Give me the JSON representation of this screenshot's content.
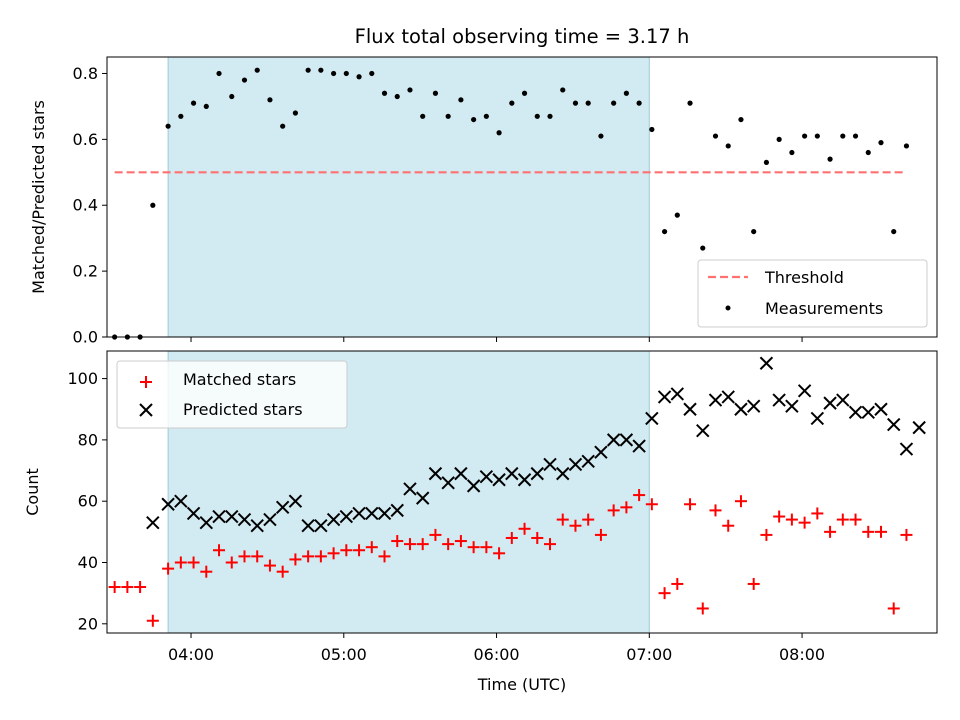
{
  "chart_data": [
    {
      "type": "scatter",
      "title": "Flux total observing time = 3.17 h",
      "xlabel": "",
      "ylabel": "Matched/Predicted stars",
      "x_axis_type": "time",
      "xlim": [
        "03:27",
        "08:53"
      ],
      "ylim": [
        0,
        0.85
      ],
      "yticks": [
        0.0,
        0.2,
        0.4,
        0.6,
        0.8
      ],
      "ytick_labels": [
        "0.0",
        "0.2",
        "0.4",
        "0.6",
        "0.8"
      ],
      "xticks": [
        "04:00",
        "05:00",
        "06:00",
        "07:00",
        "08:00"
      ],
      "xtick_labels_visible": false,
      "shaded_interval": {
        "start": "03:51",
        "end": "07:00",
        "color": "#add8e6"
      },
      "grid": false,
      "legend_position": "lower right",
      "threshold": {
        "name": "Threshold",
        "value": 0.5,
        "x_range": [
          "03:30",
          "08:40"
        ],
        "color": "#ff7070",
        "style": "dashed"
      },
      "series": [
        {
          "name": "Measurements",
          "color": "#000000",
          "marker": "dot",
          "points": [
            [
              "03:30",
              0.0
            ],
            [
              "03:35",
              0.0
            ],
            [
              "03:40",
              0.0
            ],
            [
              "03:45",
              0.4
            ],
            [
              "03:51",
              0.64
            ],
            [
              "03:56",
              0.67
            ],
            [
              "04:01",
              0.71
            ],
            [
              "04:06",
              0.7
            ],
            [
              "04:11",
              0.8
            ],
            [
              "04:16",
              0.73
            ],
            [
              "04:21",
              0.78
            ],
            [
              "04:26",
              0.81
            ],
            [
              "04:31",
              0.72
            ],
            [
              "04:36",
              0.64
            ],
            [
              "04:41",
              0.68
            ],
            [
              "04:46",
              0.81
            ],
            [
              "04:51",
              0.81
            ],
            [
              "04:56",
              0.8
            ],
            [
              "05:01",
              0.8
            ],
            [
              "05:06",
              0.79
            ],
            [
              "05:11",
              0.8
            ],
            [
              "05:16",
              0.74
            ],
            [
              "05:21",
              0.73
            ],
            [
              "05:26",
              0.75
            ],
            [
              "05:31",
              0.67
            ],
            [
              "05:36",
              0.74
            ],
            [
              "05:41",
              0.67
            ],
            [
              "05:46",
              0.72
            ],
            [
              "05:51",
              0.66
            ],
            [
              "05:56",
              0.67
            ],
            [
              "06:01",
              0.62
            ],
            [
              "06:06",
              0.71
            ],
            [
              "06:11",
              0.74
            ],
            [
              "06:16",
              0.67
            ],
            [
              "06:21",
              0.67
            ],
            [
              "06:26",
              0.75
            ],
            [
              "06:31",
              0.71
            ],
            [
              "06:36",
              0.71
            ],
            [
              "06:41",
              0.61
            ],
            [
              "06:46",
              0.71
            ],
            [
              "06:51",
              0.74
            ],
            [
              "06:56",
              0.71
            ],
            [
              "07:01",
              0.63
            ],
            [
              "07:06",
              0.32
            ],
            [
              "07:11",
              0.37
            ],
            [
              "07:16",
              0.71
            ],
            [
              "07:21",
              0.27
            ],
            [
              "07:26",
              0.61
            ],
            [
              "07:31",
              0.58
            ],
            [
              "07:36",
              0.66
            ],
            [
              "07:41",
              0.32
            ],
            [
              "07:46",
              0.53
            ],
            [
              "07:51",
              0.6
            ],
            [
              "07:56",
              0.56
            ],
            [
              "08:01",
              0.61
            ],
            [
              "08:06",
              0.61
            ],
            [
              "08:11",
              0.54
            ],
            [
              "08:16",
              0.61
            ],
            [
              "08:21",
              0.61
            ],
            [
              "08:26",
              0.56
            ],
            [
              "08:31",
              0.59
            ],
            [
              "08:36",
              0.32
            ],
            [
              "08:41",
              0.58
            ]
          ]
        }
      ]
    },
    {
      "type": "scatter",
      "title": "",
      "xlabel": "Time (UTC)",
      "ylabel": "Count",
      "x_axis_type": "time",
      "xlim": [
        "03:27",
        "08:53"
      ],
      "ylim": [
        17,
        109
      ],
      "yticks": [
        20,
        40,
        60,
        80,
        100
      ],
      "ytick_labels": [
        "20",
        "40",
        "60",
        "80",
        "100"
      ],
      "xticks": [
        "04:00",
        "05:00",
        "06:00",
        "07:00",
        "08:00"
      ],
      "xtick_labels": [
        "04:00",
        "05:00",
        "06:00",
        "07:00",
        "08:00"
      ],
      "shaded_interval": {
        "start": "03:51",
        "end": "07:00",
        "color": "#add8e6"
      },
      "grid": false,
      "legend_position": "upper left",
      "series": [
        {
          "name": "Matched stars",
          "color": "#ff0000",
          "marker": "plus",
          "points": [
            [
              "03:30",
              32
            ],
            [
              "03:35",
              32
            ],
            [
              "03:40",
              32
            ],
            [
              "03:45",
              21
            ],
            [
              "03:51",
              38
            ],
            [
              "03:56",
              40
            ],
            [
              "04:01",
              40
            ],
            [
              "04:06",
              37
            ],
            [
              "04:11",
              44
            ],
            [
              "04:16",
              40
            ],
            [
              "04:21",
              42
            ],
            [
              "04:26",
              42
            ],
            [
              "04:31",
              39
            ],
            [
              "04:36",
              37
            ],
            [
              "04:41",
              41
            ],
            [
              "04:46",
              42
            ],
            [
              "04:51",
              42
            ],
            [
              "04:56",
              43
            ],
            [
              "05:01",
              44
            ],
            [
              "05:06",
              44
            ],
            [
              "05:11",
              45
            ],
            [
              "05:16",
              42
            ],
            [
              "05:21",
              47
            ],
            [
              "05:26",
              46
            ],
            [
              "05:31",
              46
            ],
            [
              "05:36",
              49
            ],
            [
              "05:41",
              46
            ],
            [
              "05:46",
              47
            ],
            [
              "05:51",
              45
            ],
            [
              "05:56",
              45
            ],
            [
              "06:01",
              43
            ],
            [
              "06:06",
              48
            ],
            [
              "06:11",
              51
            ],
            [
              "06:16",
              48
            ],
            [
              "06:21",
              46
            ],
            [
              "06:26",
              54
            ],
            [
              "06:31",
              52
            ],
            [
              "06:36",
              54
            ],
            [
              "06:41",
              49
            ],
            [
              "06:46",
              57
            ],
            [
              "06:51",
              58
            ],
            [
              "06:56",
              62
            ],
            [
              "07:01",
              59
            ],
            [
              "07:06",
              30
            ],
            [
              "07:11",
              33
            ],
            [
              "07:16",
              59
            ],
            [
              "07:21",
              25
            ],
            [
              "07:26",
              57
            ],
            [
              "07:31",
              52
            ],
            [
              "07:36",
              60
            ],
            [
              "07:41",
              33
            ],
            [
              "07:46",
              49
            ],
            [
              "07:51",
              55
            ],
            [
              "07:56",
              54
            ],
            [
              "08:01",
              53
            ],
            [
              "08:06",
              56
            ],
            [
              "08:11",
              50
            ],
            [
              "08:16",
              54
            ],
            [
              "08:21",
              54
            ],
            [
              "08:26",
              50
            ],
            [
              "08:31",
              50
            ],
            [
              "08:36",
              25
            ],
            [
              "08:41",
              49
            ]
          ]
        },
        {
          "name": "Predicted stars",
          "color": "#000000",
          "marker": "x",
          "points": [
            [
              "03:45",
              53
            ],
            [
              "03:51",
              59
            ],
            [
              "03:56",
              60
            ],
            [
              "04:01",
              56
            ],
            [
              "04:06",
              53
            ],
            [
              "04:11",
              55
            ],
            [
              "04:16",
              55
            ],
            [
              "04:21",
              54
            ],
            [
              "04:26",
              52
            ],
            [
              "04:31",
              54
            ],
            [
              "04:36",
              58
            ],
            [
              "04:41",
              60
            ],
            [
              "04:46",
              52
            ],
            [
              "04:51",
              52
            ],
            [
              "04:56",
              54
            ],
            [
              "05:01",
              55
            ],
            [
              "05:06",
              56
            ],
            [
              "05:11",
              56
            ],
            [
              "05:16",
              56
            ],
            [
              "05:21",
              57
            ],
            [
              "05:26",
              64
            ],
            [
              "05:31",
              61
            ],
            [
              "05:36",
              69
            ],
            [
              "05:41",
              66
            ],
            [
              "05:46",
              69
            ],
            [
              "05:51",
              65
            ],
            [
              "05:56",
              68
            ],
            [
              "06:01",
              67
            ],
            [
              "06:06",
              69
            ],
            [
              "06:11",
              67
            ],
            [
              "06:16",
              69
            ],
            [
              "06:21",
              72
            ],
            [
              "06:26",
              69
            ],
            [
              "06:31",
              72
            ],
            [
              "06:36",
              73
            ],
            [
              "06:41",
              76
            ],
            [
              "06:46",
              80
            ],
            [
              "06:51",
              80
            ],
            [
              "06:56",
              78
            ],
            [
              "07:01",
              87
            ],
            [
              "07:06",
              94
            ],
            [
              "07:11",
              95
            ],
            [
              "07:16",
              90
            ],
            [
              "07:21",
              83
            ],
            [
              "07:26",
              93
            ],
            [
              "07:31",
              94
            ],
            [
              "07:36",
              90
            ],
            [
              "07:41",
              91
            ],
            [
              "07:46",
              105
            ],
            [
              "07:51",
              93
            ],
            [
              "07:56",
              91
            ],
            [
              "08:01",
              96
            ],
            [
              "08:06",
              87
            ],
            [
              "08:11",
              92
            ],
            [
              "08:16",
              93
            ],
            [
              "08:21",
              89
            ],
            [
              "08:26",
              89
            ],
            [
              "08:31",
              90
            ],
            [
              "08:36",
              85
            ],
            [
              "08:41",
              77
            ],
            [
              "08:46",
              84
            ]
          ]
        }
      ]
    }
  ]
}
